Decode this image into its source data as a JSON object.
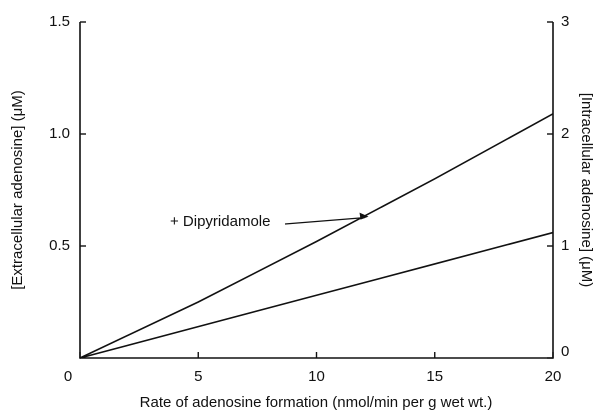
{
  "chart_data": {
    "type": "line",
    "x": [
      0,
      5,
      10,
      15,
      20
    ],
    "series": [
      {
        "name": "+ Dipyridamole",
        "color": "#111111",
        "values": [
          0,
          0.25,
          0.52,
          0.8,
          1.09
        ]
      },
      {
        "color": "#111111",
        "values": [
          0,
          0.14,
          0.28,
          0.42,
          0.56
        ]
      }
    ],
    "xlabel": "Rate of adenosine formation (nmol/min per g wet wt.)",
    "ylabel": "[Extracellular adenosine] (μM)",
    "y2label": "[Intracellular adenosine] (μM)",
    "xlim": [
      0,
      20
    ],
    "xticks": [
      0,
      5,
      10,
      15,
      20
    ],
    "ylim": [
      0,
      1.5
    ],
    "yticks": [
      0.5,
      {
        "value": 1,
        "label": "1.0"
      },
      1.5
    ],
    "y2lim": [
      0,
      3
    ],
    "y2ticks": [
      0,
      1,
      2,
      3
    ]
  }
}
